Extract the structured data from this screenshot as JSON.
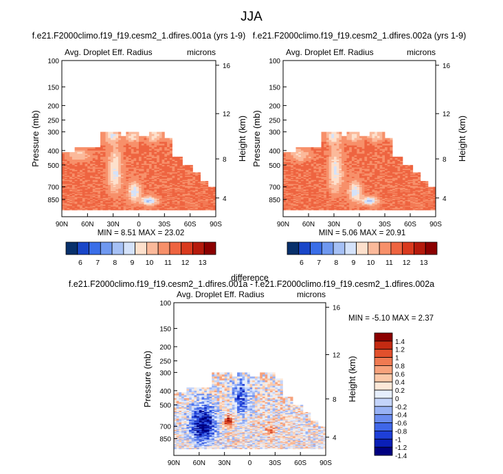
{
  "page": {
    "title": "JJA",
    "diff_title": "f.e21.F2000climo.f19_f19.cesm2_1.dfires.001a - f.e21.F2000climo.f19_f19.cesm2_1.dfires.002a"
  },
  "chart_data": [
    {
      "type": "heatmap",
      "title": "f.e21.F2000climo.f19_f19.cesm2_1.dfires.001a (yrs 1-9)",
      "left_label": "Avg. Droplet Eff. Radius",
      "right_label": "microns",
      "ylabel": "Pressure (mb)",
      "y2label": "Height (km)",
      "x_ticks": [
        "90N",
        "60N",
        "30N",
        "0",
        "30S",
        "60S",
        "90S"
      ],
      "y_ticks": [
        "100",
        "150",
        "200",
        "250",
        "300",
        "400",
        "500",
        "700",
        "850"
      ],
      "y2_ticks": [
        "16",
        "12",
        "8",
        "4"
      ],
      "stats": "MIN =  8.51  MAX = 23.02",
      "colorbar_levels": [
        "6",
        "7",
        "8",
        "9",
        "10",
        "11",
        "12",
        "13"
      ],
      "colorbar_orientation": "horizontal"
    },
    {
      "type": "heatmap",
      "title": "f.e21.F2000climo.f19_f19.cesm2_1.dfires.002a (yrs 1-9)",
      "left_label": "Avg. Droplet Eff. Radius",
      "right_label": "microns",
      "ylabel": "Pressure (mb)",
      "y2label": "Height (km)",
      "x_ticks": [
        "90N",
        "60N",
        "30N",
        "0",
        "30S",
        "60S",
        "90S"
      ],
      "y_ticks": [
        "100",
        "150",
        "200",
        "250",
        "300",
        "400",
        "500",
        "700",
        "850"
      ],
      "y2_ticks": [
        "16",
        "12",
        "8",
        "4"
      ],
      "stats": "MIN =  5.06  MAX = 20.91",
      "colorbar_levels": [
        "6",
        "7",
        "8",
        "9",
        "10",
        "11",
        "12",
        "13"
      ],
      "colorbar_orientation": "horizontal"
    },
    {
      "type": "heatmap",
      "title": "difference",
      "left_label": "Avg. Droplet Eff. Radius",
      "right_label": "microns",
      "ylabel": "Pressure (mb)",
      "y2label": "Height (km)",
      "x_ticks": [
        "90N",
        "60N",
        "30N",
        "0",
        "30S",
        "60S",
        "90S"
      ],
      "y_ticks": [
        "100",
        "150",
        "200",
        "250",
        "300",
        "400",
        "500",
        "700",
        "850"
      ],
      "y2_ticks": [
        "16",
        "12",
        "8",
        "4"
      ],
      "stats": "MIN = -5.10  MAX =  2.37",
      "colorbar_levels": [
        "1.4",
        "1.2",
        "1",
        "0.8",
        "0.6",
        "0.4",
        "0.2",
        "0",
        "-0.2",
        "-0.4",
        "-0.6",
        "-0.8",
        "-1",
        "-1.2",
        "-1.4"
      ],
      "colorbar_orientation": "vertical"
    }
  ],
  "colors": {
    "abs_scale": [
      "#08306b",
      "#1946c8",
      "#3a6ee8",
      "#6f98f0",
      "#a5c0f5",
      "#d4e2fa",
      "#fde0cc",
      "#fbb99a",
      "#f7906a",
      "#ee6440",
      "#d93a1e",
      "#b51a0c",
      "#8b0000"
    ],
    "diff_scale": [
      "#000080",
      "#0a1fb8",
      "#1e3fd8",
      "#3f66e8",
      "#6a8cf0",
      "#98b2f5",
      "#c4d4fa",
      "#e6eefc",
      "#fde8d8",
      "#fbc8a8",
      "#f7a27c",
      "#f07a52",
      "#e2502c",
      "#c42a12",
      "#8b0000"
    ]
  }
}
